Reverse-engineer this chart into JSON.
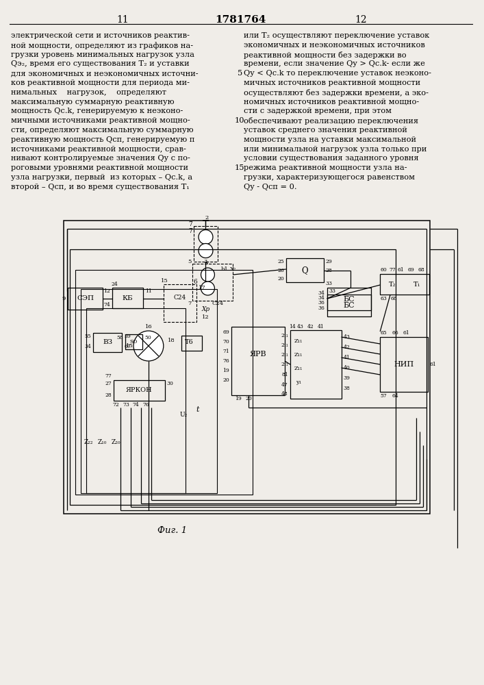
{
  "page_number_left": "11",
  "page_number_center": "1781764",
  "page_number_right": "12",
  "col_left_text": [
    "электрической сети и источников реактив-",
    "ной мощности, определяют из графиков на-",
    "грузки уровень минимальных нагрузок узла",
    "Qэ₂, время его существования T₂ и уставки",
    "для экономичных и неэкономичных источни-",
    "ков реактивной мощности для периода ми-",
    "нимальных    нагрузок,    определяют",
    "максимальную суммарную реактивную",
    "мощность Qс.k, генерируемую к неэконо-",
    "мичными источниками реактивной мощно-",
    "сти, определяют максимальную суммарную",
    "реактивную мощность Qсп, генерируемую п",
    "источниками реактивной мощности, срав-",
    "нивают контролируемые значения Qy с по-",
    "роговыми уровнями реактивной мощности",
    "узла нагрузки, первый  из которых – Qc.k, а",
    "второй – Qсп, и во время существования Т₁"
  ],
  "col_right_text": [
    "или Т₂ осуществляют переключение уставок",
    "экономичных и неэкономичных источников",
    "реактивной мощности без задержки во",
    "времени, если значение Qy > Qс.k- если же",
    "Qy < Qс.k то переключение уставок неэконо-",
    "мичных источников реактивной мощности",
    "осуществляют без задержки времени, а эко-",
    "номичных источников реактивной мощно-",
    "сти с задержкой времени, при этом",
    "обеспечивают реализацию переключения",
    "уставок среднего значения реактивной",
    "мощности узла на уставки максимальной",
    "или минимальной нагрузок узла только при",
    "условии существования заданного уровня",
    "режима реактивной мощности узла на-",
    "грузки, характеризующегося равенством",
    "Qy - Qсп = 0."
  ],
  "line_numbers": {
    "4": "5",
    "9": "10",
    "14": "15"
  },
  "figure_caption": "Фиг. 1",
  "bg_color": "#f0ede8"
}
